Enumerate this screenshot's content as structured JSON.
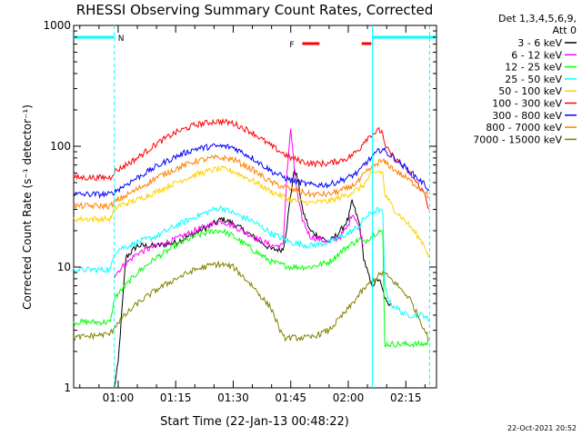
{
  "chart_data": {
    "type": "line",
    "title": "RHESSI Observing Summary Count Rates, Corrected",
    "xlabel": "Start Time (22-Jan-13 00:48:22)",
    "ylabel": "Corrected Count Rate (s⁻¹ detector⁻¹)",
    "y_scale": "log",
    "ylim": [
      1,
      1000
    ],
    "xlim_min": [
      48.4,
      143
    ],
    "x_ticks": [
      {
        "min": 60,
        "label": "01:00"
      },
      {
        "min": 75,
        "label": "01:15"
      },
      {
        "min": 90,
        "label": "01:30"
      },
      {
        "min": 105,
        "label": "01:45"
      },
      {
        "min": 120,
        "label": "02:00"
      },
      {
        "min": 135,
        "label": "02:15"
      }
    ],
    "y_ticks": [
      {
        "val": 1,
        "label": "1"
      },
      {
        "val": 10,
        "label": "10"
      },
      {
        "val": 100,
        "label": "100"
      },
      {
        "val": 1000,
        "label": "1000"
      }
    ],
    "legend_header": [
      "Det 1,3,4,5,6,9,",
      "Att 0"
    ],
    "legend_position": "right",
    "series": [
      {
        "name": "3 - 6 keV",
        "color": "#000000",
        "points": [
          [
            59,
            1
          ],
          [
            60,
            1.6
          ],
          [
            62,
            12
          ],
          [
            65,
            15
          ],
          [
            70,
            15
          ],
          [
            75,
            16
          ],
          [
            80,
            19
          ],
          [
            85,
            23
          ],
          [
            87,
            25
          ],
          [
            90,
            23
          ],
          [
            95,
            18
          ],
          [
            100,
            14
          ],
          [
            103,
            14
          ],
          [
            104,
            22
          ],
          [
            105,
            40
          ],
          [
            106,
            65
          ],
          [
            107,
            50
          ],
          [
            108,
            30
          ],
          [
            110,
            20
          ],
          [
            115,
            16
          ],
          [
            118,
            20
          ],
          [
            120,
            25
          ],
          [
            121,
            35
          ],
          [
            122,
            28
          ],
          [
            123,
            22
          ],
          [
            124,
            12
          ],
          [
            126,
            7
          ],
          [
            128,
            8
          ],
          [
            130,
            5
          ],
          [
            131,
            5
          ]
        ]
      },
      {
        "name": "6 - 12 keV",
        "color": "#ff00ff",
        "points": [
          [
            59,
            8.5
          ],
          [
            61,
            10
          ],
          [
            65,
            13
          ],
          [
            70,
            15
          ],
          [
            75,
            17
          ],
          [
            80,
            20
          ],
          [
            85,
            23
          ],
          [
            87,
            24
          ],
          [
            90,
            22
          ],
          [
            95,
            18
          ],
          [
            100,
            15
          ],
          [
            103,
            15
          ],
          [
            104,
            60
          ],
          [
            105,
            140
          ],
          [
            106,
            60
          ],
          [
            107,
            35
          ],
          [
            108,
            25
          ],
          [
            110,
            18
          ],
          [
            115,
            16
          ],
          [
            118,
            18
          ],
          [
            120,
            22
          ],
          [
            121,
            28
          ],
          [
            122,
            25
          ],
          [
            123,
            20
          ],
          [
            124,
            15
          ]
        ]
      },
      {
        "name": "12 - 25 keV",
        "color": "#00ff00",
        "points": [
          [
            48.4,
            3.5
          ],
          [
            58,
            3.5
          ],
          [
            59,
            5.5
          ],
          [
            60,
            6
          ],
          [
            65,
            9
          ],
          [
            70,
            12
          ],
          [
            75,
            15
          ],
          [
            80,
            18
          ],
          [
            85,
            20
          ],
          [
            87,
            20
          ],
          [
            90,
            18
          ],
          [
            95,
            14
          ],
          [
            100,
            11
          ],
          [
            105,
            10
          ],
          [
            110,
            10
          ],
          [
            115,
            11
          ],
          [
            120,
            15
          ],
          [
            123,
            17
          ],
          [
            124,
            16
          ],
          [
            126,
            18
          ],
          [
            128,
            20
          ],
          [
            129,
            19
          ],
          [
            129.5,
            2.3
          ],
          [
            135,
            2.3
          ],
          [
            140,
            2.3
          ],
          [
            141,
            2.4
          ]
        ]
      },
      {
        "name": "25 - 50 keV",
        "color": "#00ffff",
        "points": [
          [
            48.4,
            9.5
          ],
          [
            58,
            9.5
          ],
          [
            59,
            13
          ],
          [
            60,
            14
          ],
          [
            65,
            16
          ],
          [
            70,
            18
          ],
          [
            75,
            22
          ],
          [
            80,
            26
          ],
          [
            85,
            30
          ],
          [
            87,
            31
          ],
          [
            90,
            28
          ],
          [
            95,
            24
          ],
          [
            100,
            19
          ],
          [
            105,
            16
          ],
          [
            110,
            15
          ],
          [
            115,
            16
          ],
          [
            120,
            19
          ],
          [
            123,
            22
          ],
          [
            124,
            25
          ],
          [
            126,
            28
          ],
          [
            128,
            30
          ],
          [
            129,
            28
          ],
          [
            129.5,
            7
          ],
          [
            131,
            5
          ],
          [
            135,
            4
          ],
          [
            140,
            4
          ],
          [
            141,
            3.5
          ]
        ]
      },
      {
        "name": "50 - 100 keV",
        "color": "#ffd000",
        "points": [
          [
            48.4,
            25
          ],
          [
            58,
            25
          ],
          [
            59,
            30
          ],
          [
            60,
            32
          ],
          [
            65,
            36
          ],
          [
            70,
            42
          ],
          [
            75,
            50
          ],
          [
            80,
            58
          ],
          [
            85,
            64
          ],
          [
            87,
            65
          ],
          [
            90,
            62
          ],
          [
            95,
            52
          ],
          [
            100,
            42
          ],
          [
            105,
            36
          ],
          [
            110,
            34
          ],
          [
            115,
            35
          ],
          [
            120,
            40
          ],
          [
            123,
            45
          ],
          [
            124,
            48
          ],
          [
            126,
            58
          ],
          [
            128,
            62
          ],
          [
            129,
            60
          ],
          [
            129.5,
            40
          ],
          [
            132,
            30
          ],
          [
            136,
            22
          ],
          [
            140,
            15
          ],
          [
            141,
            12
          ]
        ]
      },
      {
        "name": "100 - 300 keV",
        "color": "#ff0000",
        "points": [
          [
            48.4,
            55
          ],
          [
            58,
            55
          ],
          [
            59,
            62
          ],
          [
            60,
            64
          ],
          [
            65,
            80
          ],
          [
            70,
            105
          ],
          [
            75,
            130
          ],
          [
            80,
            150
          ],
          [
            85,
            160
          ],
          [
            87,
            160
          ],
          [
            90,
            155
          ],
          [
            95,
            130
          ],
          [
            100,
            100
          ],
          [
            105,
            80
          ],
          [
            110,
            72
          ],
          [
            115,
            72
          ],
          [
            120,
            80
          ],
          [
            123,
            95
          ],
          [
            124,
            110
          ],
          [
            126,
            125
          ],
          [
            128,
            135
          ],
          [
            129,
            130
          ],
          [
            129.5,
            100
          ],
          [
            132,
            80
          ],
          [
            136,
            60
          ],
          [
            140,
            40
          ],
          [
            141,
            30
          ]
        ]
      },
      {
        "name": "300 - 800 keV",
        "color": "#0000ff",
        "points": [
          [
            48.4,
            40
          ],
          [
            58,
            40
          ],
          [
            59,
            42
          ],
          [
            60,
            44
          ],
          [
            65,
            55
          ],
          [
            70,
            68
          ],
          [
            75,
            82
          ],
          [
            80,
            95
          ],
          [
            85,
            100
          ],
          [
            87,
            100
          ],
          [
            90,
            98
          ],
          [
            95,
            80
          ],
          [
            100,
            62
          ],
          [
            105,
            52
          ],
          [
            110,
            48
          ],
          [
            115,
            48
          ],
          [
            120,
            55
          ],
          [
            123,
            62
          ],
          [
            124,
            70
          ],
          [
            126,
            80
          ],
          [
            128,
            92
          ],
          [
            129,
            95
          ],
          [
            130,
            88
          ],
          [
            132,
            80
          ],
          [
            136,
            62
          ],
          [
            140,
            48
          ],
          [
            141,
            44
          ]
        ]
      },
      {
        "name": "800 - 7000 keV",
        "color": "#ff8000",
        "points": [
          [
            48.4,
            32
          ],
          [
            58,
            32
          ],
          [
            59,
            34
          ],
          [
            60,
            36
          ],
          [
            65,
            44
          ],
          [
            70,
            55
          ],
          [
            75,
            65
          ],
          [
            80,
            75
          ],
          [
            85,
            80
          ],
          [
            87,
            80
          ],
          [
            90,
            78
          ],
          [
            95,
            64
          ],
          [
            100,
            50
          ],
          [
            105,
            44
          ],
          [
            110,
            40
          ],
          [
            115,
            40
          ],
          [
            120,
            45
          ],
          [
            123,
            52
          ],
          [
            124,
            58
          ],
          [
            126,
            66
          ],
          [
            128,
            74
          ],
          [
            129,
            75
          ],
          [
            130,
            72
          ],
          [
            132,
            64
          ],
          [
            136,
            52
          ],
          [
            140,
            42
          ],
          [
            141,
            38
          ]
        ]
      },
      {
        "name": "7000 - 15000 keV",
        "color": "#808000",
        "points": [
          [
            48.4,
            2.6
          ],
          [
            58,
            2.8
          ],
          [
            59,
            3.2
          ],
          [
            60,
            3.5
          ],
          [
            65,
            5
          ],
          [
            70,
            6.5
          ],
          [
            75,
            8
          ],
          [
            80,
            9.5
          ],
          [
            85,
            10.5
          ],
          [
            87,
            10.5
          ],
          [
            90,
            10
          ],
          [
            95,
            7
          ],
          [
            100,
            4.5
          ],
          [
            103,
            2.6
          ],
          [
            106,
            2.6
          ],
          [
            110,
            2.6
          ],
          [
            115,
            3
          ],
          [
            120,
            4.5
          ],
          [
            123,
            6
          ],
          [
            124,
            6.5
          ],
          [
            126,
            7.5
          ],
          [
            128,
            8.5
          ],
          [
            129,
            9
          ],
          [
            130,
            8.5
          ],
          [
            132,
            7.5
          ],
          [
            136,
            5.5
          ],
          [
            140,
            3
          ],
          [
            141,
            2.5
          ]
        ]
      }
    ],
    "flags": [
      {
        "label": "N",
        "color": "#00ffff",
        "from": 48.4,
        "to": 59
      },
      {
        "label": "",
        "color": "#00ffff",
        "from": 126.3,
        "to": 143
      }
    ],
    "flare_flag": {
      "label": "F",
      "color": "#ff0000",
      "segments": [
        [
          108,
          112.5
        ],
        [
          123.5,
          126
        ]
      ]
    },
    "vertical_markers": [
      {
        "min": 59,
        "color": "#00ffff",
        "style": "dashed"
      },
      {
        "min": 126.3,
        "color": "#00ffff",
        "style": "solid"
      },
      {
        "min": 141.2,
        "color": "#00ffff",
        "style": "dashed"
      }
    ]
  },
  "footer_date": "22-Oct-2021 20:52"
}
